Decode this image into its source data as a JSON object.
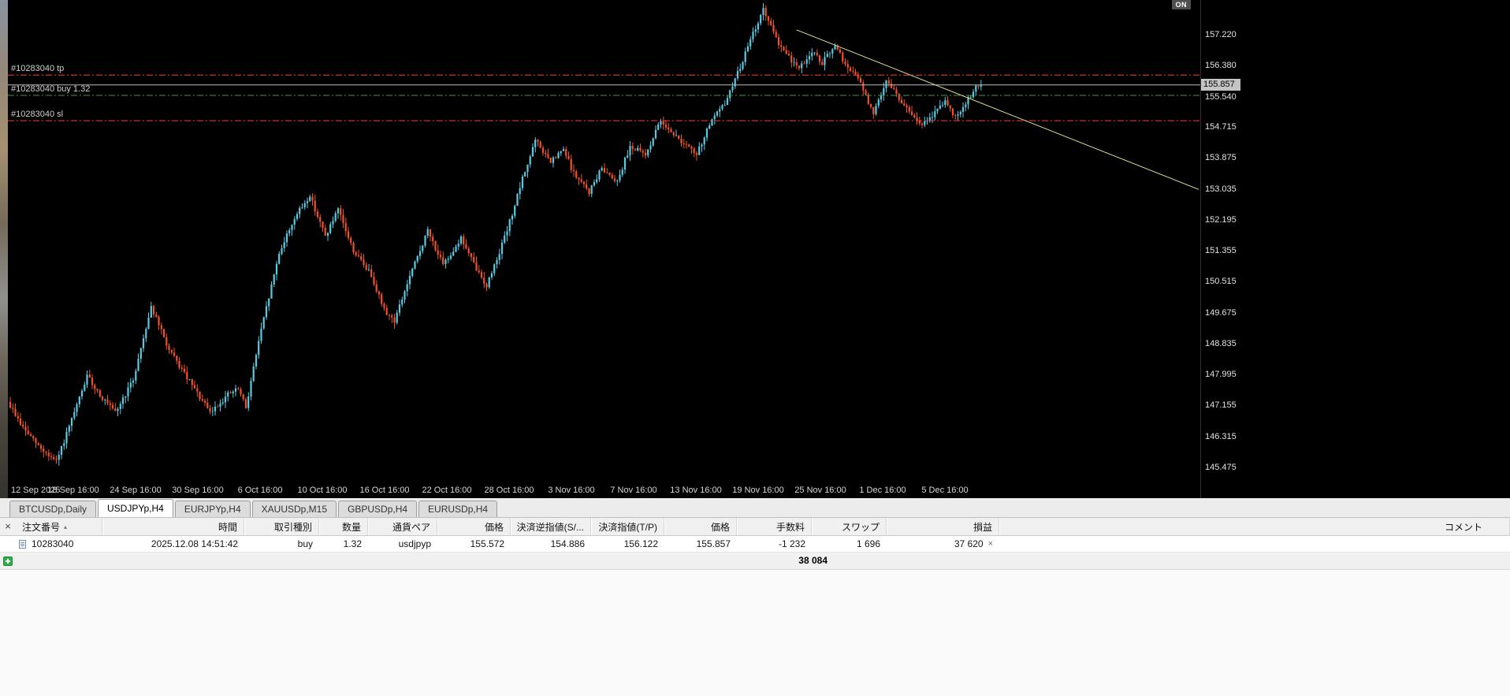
{
  "window": {
    "on_badge": "ON"
  },
  "chart_data": {
    "type": "candlestick",
    "symbol": "USDJPYp",
    "timeframe": "H4",
    "up_color": "#59cbe3",
    "down_color": "#f0522b",
    "candle_count": 380,
    "noise": 0.14,
    "wick": 0.16,
    "seed": 9,
    "y_axis": {
      "top_price": 158.161,
      "bottom_price": 145.068,
      "labels": [
        "157.220",
        "156.380",
        "155.540",
        "154.715",
        "153.875",
        "153.035",
        "152.195",
        "151.355",
        "150.515",
        "149.675",
        "148.835",
        "147.995",
        "147.155",
        "146.315",
        "145.475"
      ]
    },
    "x_axis": {
      "labels": [
        "12 Sep 2025",
        "18 Sep 16:00",
        "24 Sep 16:00",
        "30 Sep 16:00",
        "6 Oct 16:00",
        "10 Oct 16:00",
        "16 Oct 16:00",
        "22 Oct 16:00",
        "28 Oct 16:00",
        "3 Nov 16:00",
        "7 Nov 16:00",
        "13 Nov 16:00",
        "19 Nov 16:00",
        "25 Nov 16:00",
        "1 Dec 16:00",
        "5 Dec 16:00"
      ],
      "first_tick_x": 4,
      "tick_spacing": 79
    },
    "price_path_waypoints": [
      [
        0,
        147.25
      ],
      [
        6,
        146.55
      ],
      [
        12,
        146.05
      ],
      [
        19,
        145.62
      ],
      [
        25,
        146.75
      ],
      [
        31,
        147.95
      ],
      [
        37,
        147.35
      ],
      [
        42,
        146.95
      ],
      [
        49,
        147.85
      ],
      [
        56,
        149.85
      ],
      [
        63,
        148.65
      ],
      [
        71,
        147.8
      ],
      [
        79,
        146.95
      ],
      [
        86,
        147.45
      ],
      [
        90,
        147.6
      ],
      [
        93,
        147.1
      ],
      [
        98,
        148.9
      ],
      [
        106,
        151.3
      ],
      [
        112,
        152.25
      ],
      [
        118,
        152.85
      ],
      [
        124,
        151.75
      ],
      [
        129,
        152.45
      ],
      [
        135,
        151.35
      ],
      [
        142,
        150.7
      ],
      [
        147,
        149.75
      ],
      [
        151,
        149.45
      ],
      [
        157,
        150.65
      ],
      [
        164,
        151.9
      ],
      [
        170,
        150.95
      ],
      [
        177,
        151.7
      ],
      [
        183,
        150.85
      ],
      [
        187,
        150.4
      ],
      [
        195,
        151.9
      ],
      [
        201,
        153.3
      ],
      [
        206,
        154.35
      ],
      [
        212,
        153.75
      ],
      [
        217,
        154.1
      ],
      [
        221,
        153.45
      ],
      [
        227,
        152.95
      ],
      [
        232,
        153.6
      ],
      [
        238,
        153.25
      ],
      [
        243,
        154.2
      ],
      [
        249,
        153.95
      ],
      [
        255,
        154.9
      ],
      [
        261,
        154.45
      ],
      [
        269,
        153.95
      ],
      [
        274,
        154.8
      ],
      [
        280,
        155.35
      ],
      [
        286,
        156.35
      ],
      [
        291,
        157.25
      ],
      [
        295,
        157.9
      ],
      [
        300,
        157.1
      ],
      [
        305,
        156.6
      ],
      [
        309,
        156.3
      ],
      [
        314,
        156.75
      ],
      [
        318,
        156.45
      ],
      [
        323,
        156.9
      ],
      [
        328,
        156.3
      ],
      [
        332,
        156.05
      ],
      [
        338,
        155.05
      ],
      [
        343,
        156.0
      ],
      [
        348,
        155.5
      ],
      [
        352,
        155.1
      ],
      [
        357,
        154.75
      ],
      [
        362,
        155.1
      ],
      [
        366,
        155.45
      ],
      [
        370,
        154.95
      ],
      [
        375,
        155.5
      ],
      [
        379,
        155.857
      ]
    ],
    "order_lines": {
      "tp": {
        "label": "#10283040 tp",
        "price": 156.122,
        "color": "#ff3c3c"
      },
      "buy": {
        "label": "#10283040 buy 1.32",
        "price": 155.572,
        "color": "#3f9e44"
      },
      "sl": {
        "label": "#10283040 sl",
        "price": 154.886,
        "color": "#ff3c3c"
      }
    },
    "bid_line": {
      "price": 155.857,
      "label": "155.857",
      "color": "#bbbbbb"
    },
    "trendline": {
      "from_index": 307,
      "from_price": 157.35,
      "to_index": 464,
      "to_price": 153.02,
      "color": "#e6e695"
    }
  },
  "tabs": [
    {
      "label": "BTCUSDp,Daily",
      "active": false
    },
    {
      "label": "USDJPYp,H4",
      "active": true
    },
    {
      "label": "EURJPYp,H4",
      "active": false
    },
    {
      "label": "XAUUSDp,M15",
      "active": false
    },
    {
      "label": "GBPUSDp,H4",
      "active": false
    },
    {
      "label": "EURUSDp,H4",
      "active": false
    }
  ],
  "orders_panel": {
    "close_label": "×",
    "sort_icon": "▴",
    "headers": [
      "注文番号",
      "時間",
      "取引種別",
      "数量",
      "通貨ペア",
      "価格",
      "決済逆指値(S/...",
      "決済指値(T/P)",
      "価格",
      "手数料",
      "スワップ",
      "損益",
      "コメント"
    ],
    "rows": [
      {
        "order": "10283040",
        "time": "2025.12.08 14:51:42",
        "type": "buy",
        "volume": "1.32",
        "symbol": "usdjpyp",
        "price_open": "155.572",
        "sl": "154.886",
        "tp": "156.122",
        "price_current": "155.857",
        "commission": "-1 232",
        "swap": "1 696",
        "profit": "37 620",
        "close_label": "×"
      }
    ],
    "total_profit": "38 084"
  }
}
